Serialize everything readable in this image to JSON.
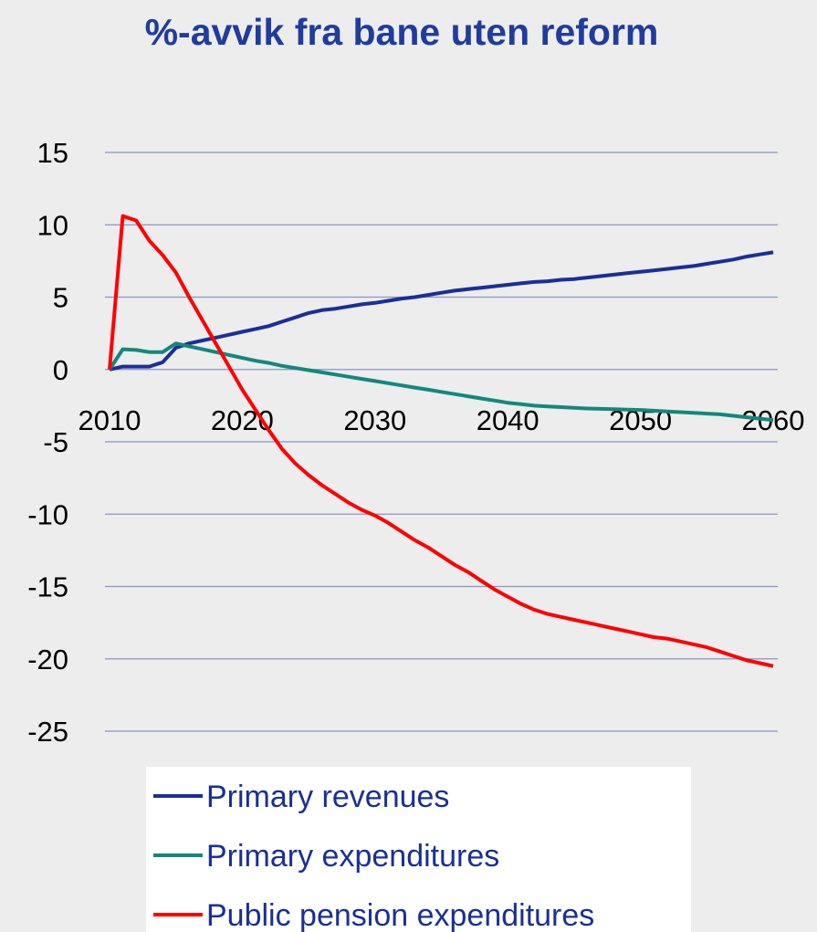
{
  "chart_data": {
    "type": "line",
    "title": "%-avvik fra bane uten reform",
    "x": [
      2010,
      2011,
      2012,
      2013,
      2014,
      2015,
      2016,
      2017,
      2018,
      2019,
      2020,
      2021,
      2022,
      2023,
      2024,
      2025,
      2026,
      2027,
      2028,
      2029,
      2030,
      2031,
      2032,
      2033,
      2034,
      2035,
      2036,
      2037,
      2038,
      2039,
      2040,
      2041,
      2042,
      2043,
      2044,
      2045,
      2046,
      2047,
      2048,
      2049,
      2050,
      2051,
      2052,
      2053,
      2054,
      2055,
      2056,
      2057,
      2058,
      2059,
      2060
    ],
    "xlim": [
      2010,
      2060
    ],
    "xticks": [
      2010,
      2020,
      2030,
      2040,
      2050,
      2060
    ],
    "ylim": [
      -25,
      15
    ],
    "yticks": [
      -25,
      -20,
      -15,
      -10,
      -5,
      0,
      5,
      10,
      15
    ],
    "grid": true,
    "series": [
      {
        "name": "Primary revenues",
        "color": "#1a2f96",
        "values": [
          0,
          0.2,
          0.2,
          0.2,
          0.5,
          1.5,
          1.8,
          2.0,
          2.2,
          2.4,
          2.6,
          2.8,
          3.0,
          3.3,
          3.6,
          3.9,
          4.1,
          4.2,
          4.35,
          4.5,
          4.6,
          4.75,
          4.9,
          5.0,
          5.15,
          5.3,
          5.45,
          5.55,
          5.65,
          5.75,
          5.85,
          5.95,
          6.05,
          6.1,
          6.2,
          6.25,
          6.35,
          6.45,
          6.55,
          6.65,
          6.75,
          6.85,
          6.95,
          7.05,
          7.15,
          7.3,
          7.45,
          7.6,
          7.8,
          7.95,
          8.1
        ]
      },
      {
        "name": "Primary expenditures",
        "color": "#14877c",
        "values": [
          0,
          1.4,
          1.35,
          1.2,
          1.2,
          1.8,
          1.6,
          1.4,
          1.2,
          1.0,
          0.8,
          0.6,
          0.45,
          0.25,
          0.1,
          -0.05,
          -0.2,
          -0.35,
          -0.5,
          -0.65,
          -0.8,
          -0.95,
          -1.1,
          -1.25,
          -1.4,
          -1.55,
          -1.7,
          -1.85,
          -2.0,
          -2.15,
          -2.3,
          -2.4,
          -2.5,
          -2.55,
          -2.6,
          -2.65,
          -2.7,
          -2.72,
          -2.75,
          -2.78,
          -2.8,
          -2.85,
          -2.9,
          -2.95,
          -3.0,
          -3.05,
          -3.1,
          -3.2,
          -3.3,
          -3.4,
          -3.5
        ]
      },
      {
        "name": "Public pension expenditures",
        "color": "#ff0000",
        "values": [
          0,
          10.6,
          10.3,
          8.9,
          7.9,
          6.7,
          5.0,
          3.4,
          1.8,
          0.2,
          -1.4,
          -2.8,
          -4.2,
          -5.5,
          -6.5,
          -7.3,
          -8.0,
          -8.6,
          -9.2,
          -9.7,
          -10.1,
          -10.6,
          -11.2,
          -11.8,
          -12.3,
          -12.9,
          -13.5,
          -14.0,
          -14.6,
          -15.2,
          -15.7,
          -16.2,
          -16.6,
          -16.9,
          -17.1,
          -17.3,
          -17.5,
          -17.7,
          -17.9,
          -18.1,
          -18.3,
          -18.5,
          -18.6,
          -18.8,
          -19.0,
          -19.2,
          -19.5,
          -19.8,
          -20.1,
          -20.3,
          -20.5
        ]
      }
    ],
    "legend": "bottom"
  }
}
